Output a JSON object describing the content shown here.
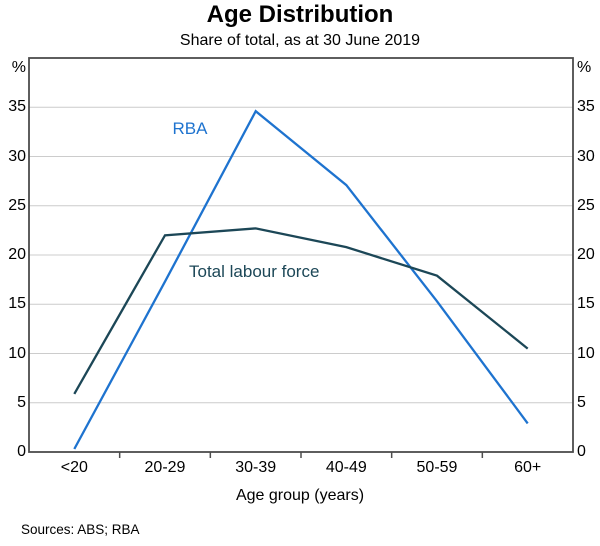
{
  "chart_data": {
    "type": "line",
    "title": "Age Distribution",
    "subtitle": "Share of total, as at 30 June 2019",
    "categories": [
      "<20",
      "20-29",
      "30-39",
      "40-49",
      "50-59",
      "60+"
    ],
    "series": [
      {
        "name": "RBA",
        "color": "#1e73cf",
        "values": [
          0.3,
          17.3,
          34.6,
          27.1,
          15.3,
          2.9
        ]
      },
      {
        "name": "Total labour force",
        "color": "#1c4757",
        "values": [
          5.9,
          22.0,
          22.7,
          20.8,
          17.9,
          10.5
        ]
      }
    ],
    "xlabel": "Age group (years)",
    "y_unit": "%",
    "ylim": [
      0,
      40
    ],
    "yticks": [
      0,
      5,
      10,
      15,
      20,
      25,
      30,
      35
    ],
    "grid": "horizontal",
    "legend": "inline-annotations",
    "axis_color": "#4d4d4d",
    "grid_color": "#cccccc"
  },
  "footer": {
    "sources": "Sources: ABS; RBA"
  }
}
